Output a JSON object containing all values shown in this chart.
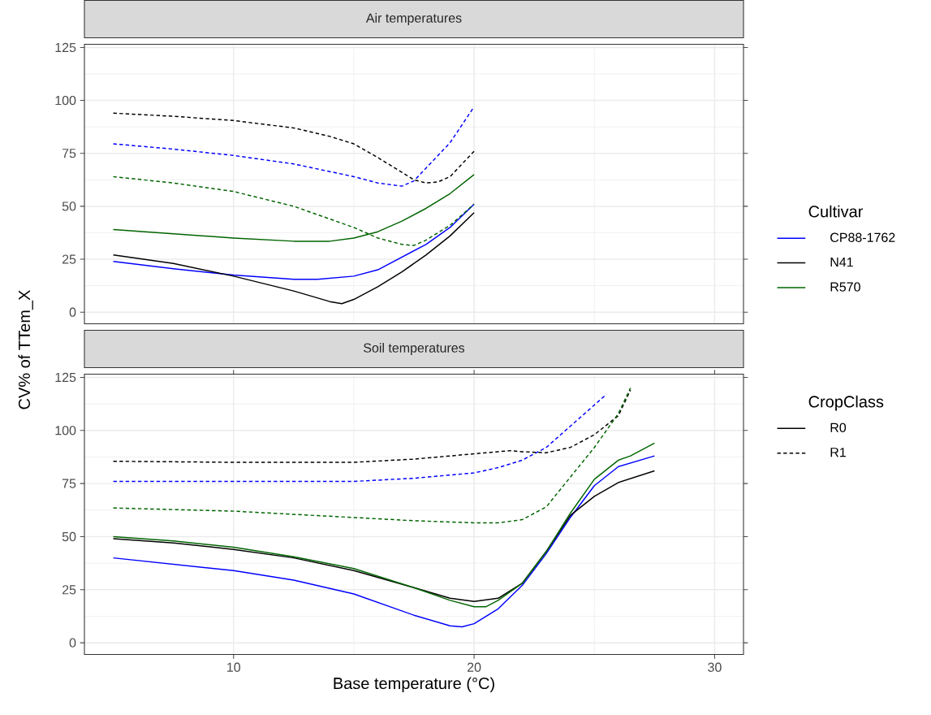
{
  "chart_data": [
    {
      "type": "line",
      "title": "Air temperatures",
      "ylabel": "CV% of TTem_X",
      "legend_title": "Cultivar",
      "legend": "right",
      "grid": true,
      "tick_labels": "y",
      "xlim": [
        3.8,
        31.2
      ],
      "ylim": [
        -5.5,
        126.5
      ],
      "xticks": [
        10,
        20,
        30
      ],
      "yticks": [
        0,
        25,
        50,
        75,
        100,
        125
      ],
      "series": [
        {
          "name": "CP88-1762",
          "color": "#0000ff",
          "line_style": "solid",
          "x": [
            5,
            7.5,
            10,
            12.5,
            13.5,
            15,
            16,
            17,
            18,
            19,
            20
          ],
          "values": [
            24,
            20.5,
            17.5,
            15.5,
            15.5,
            17,
            20,
            26,
            32,
            40,
            51
          ]
        },
        {
          "name": "N41",
          "color": "#000000",
          "line_style": "solid",
          "x": [
            5,
            7.5,
            10,
            12.5,
            14,
            14.5,
            15,
            16,
            17,
            18,
            19,
            20
          ],
          "values": [
            27,
            23,
            17,
            10,
            5,
            4,
            6,
            12,
            19,
            27,
            36,
            47
          ]
        },
        {
          "name": "R570",
          "color": "#006400",
          "line_style": "solid",
          "x": [
            5,
            7.5,
            10,
            12.5,
            14,
            15,
            16,
            17,
            18,
            19,
            20
          ],
          "values": [
            39,
            37,
            35,
            33.5,
            33.5,
            35,
            38,
            43,
            49,
            56,
            65
          ]
        },
        {
          "color": "#0000ff",
          "line_style": "dashed",
          "x": [
            5,
            7.5,
            10,
            12.5,
            15,
            16,
            17,
            17.5,
            18,
            19,
            20
          ],
          "values": [
            79.5,
            77,
            74,
            70,
            64,
            61,
            59.5,
            62,
            68,
            80,
            97
          ]
        },
        {
          "color": "#000000",
          "line_style": "dashed",
          "x": [
            5,
            7.5,
            10,
            12.5,
            14,
            15,
            16,
            17,
            17.5,
            18,
            18.5,
            19,
            20
          ],
          "values": [
            94,
            92.5,
            90.5,
            87,
            83,
            79.5,
            73,
            66,
            62.5,
            61,
            61.5,
            64,
            76
          ]
        },
        {
          "color": "#006400",
          "line_style": "dashed",
          "x": [
            5,
            7.5,
            10,
            12.5,
            14,
            15,
            16,
            17,
            17.5,
            18,
            19,
            20
          ],
          "values": [
            64,
            61,
            57,
            50,
            44,
            40,
            35,
            32,
            31.5,
            34,
            41,
            51
          ]
        }
      ]
    },
    {
      "type": "line",
      "title": "Soil temperatures",
      "xlabel": "Base temperature (°C)",
      "legend_title": "CropClass",
      "legend": "right",
      "grid": true,
      "xlim": [
        3.8,
        31.2
      ],
      "ylim": [
        -5.5,
        126.5
      ],
      "xticks": [
        10,
        20,
        30
      ],
      "yticks": [
        0,
        25,
        50,
        75,
        100,
        125
      ],
      "series": [
        {
          "color": "#0000ff",
          "line_style": "solid",
          "x": [
            5,
            7.5,
            10,
            12.5,
            15,
            17.5,
            19,
            19.5,
            20,
            21,
            22,
            23,
            24,
            25,
            26,
            27.5
          ],
          "values": [
            40,
            37,
            34,
            29.5,
            23,
            13,
            8,
            7.5,
            9,
            16,
            27,
            42,
            59,
            74,
            83,
            88
          ]
        },
        {
          "name": "R0",
          "color": "#000000",
          "line_style": "solid",
          "x": [
            5,
            7.5,
            10,
            12.5,
            15,
            17.5,
            19,
            20,
            21,
            22,
            23,
            24,
            25,
            26,
            27.5
          ],
          "values": [
            49,
            47,
            44,
            40,
            34,
            26,
            21,
            19.5,
            21,
            28,
            43,
            60,
            69,
            75.5,
            81
          ]
        },
        {
          "color": "#006400",
          "line_style": "solid",
          "x": [
            5,
            7.5,
            10,
            12.5,
            15,
            17.5,
            19,
            20,
            20.5,
            21,
            22,
            23,
            24,
            25,
            26,
            26.5,
            27.5
          ],
          "values": [
            50,
            48,
            45,
            40.5,
            35,
            26,
            20,
            17,
            17,
            20,
            28,
            43,
            61,
            77,
            86,
            88,
            94
          ]
        },
        {
          "color": "#0000ff",
          "line_style": "dashed",
          "x": [
            5,
            10,
            15,
            17.5,
            20,
            21,
            22,
            23,
            24,
            25,
            25.5
          ],
          "values": [
            76,
            76,
            76,
            77.5,
            80,
            82.5,
            86,
            92,
            102,
            112,
            117
          ]
        },
        {
          "name": "R1",
          "color": "#000000",
          "line_style": "dashed",
          "x": [
            5,
            10,
            15,
            17.5,
            20,
            21,
            21.5,
            22,
            23,
            24,
            25,
            26,
            26.5
          ],
          "values": [
            85.5,
            85,
            85,
            86.5,
            89,
            90,
            90.5,
            90,
            89.5,
            92,
            98,
            107,
            119
          ]
        },
        {
          "color": "#006400",
          "line_style": "dashed",
          "x": [
            5,
            10,
            15,
            17.5,
            20,
            21,
            22,
            23,
            24,
            25,
            26,
            26.5
          ],
          "values": [
            63.5,
            62,
            59,
            57.5,
            56.5,
            56.5,
            58,
            64,
            78,
            92,
            108,
            120
          ]
        }
      ]
    }
  ]
}
